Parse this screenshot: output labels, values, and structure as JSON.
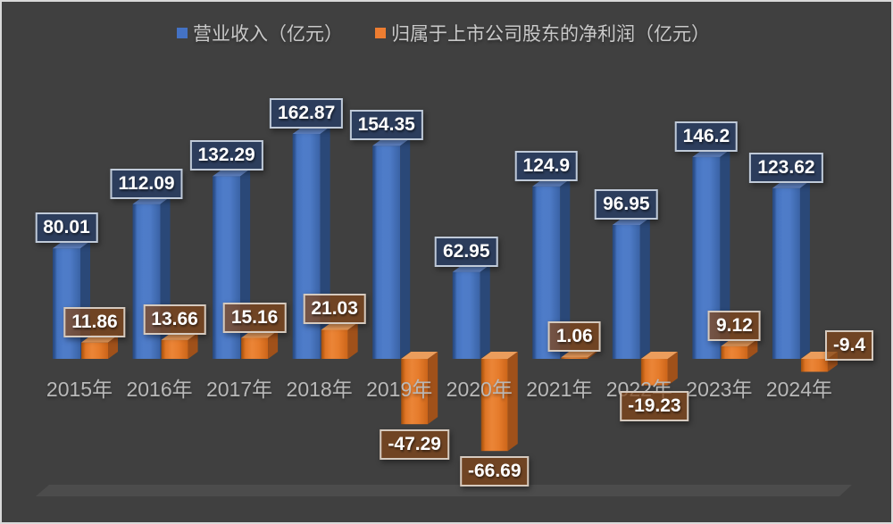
{
  "chart_data": {
    "type": "bar",
    "title": "",
    "categories": [
      "2015年",
      "2016年",
      "2017年",
      "2018年",
      "2019年",
      "2020年",
      "2021年",
      "2022年",
      "2023年",
      "2024年"
    ],
    "series": [
      {
        "name": "营业收入（亿元）",
        "color": "#4472C4",
        "values": [
          80.01,
          112.09,
          132.29,
          162.87,
          154.35,
          62.95,
          124.9,
          96.95,
          146.2,
          123.62
        ]
      },
      {
        "name": "归属于上市公司股东的净利润（亿元）",
        "color": "#ED7D31",
        "values": [
          11.86,
          13.66,
          15.16,
          21.03,
          -47.29,
          -66.69,
          1.06,
          -19.23,
          9.12,
          -9.4
        ]
      }
    ],
    "legend_position": "top",
    "value_labels": "boxed, outside end",
    "style": "3d-bars",
    "axes": {
      "x_axis_visible": false,
      "y_axis_visible": false,
      "gridlines": false,
      "baseline_value": 0
    },
    "background_color": "#404040",
    "floor_color": "#4C4C4C",
    "label_text_color": "#FFFFFF",
    "category_text_color": "#B9B9B9",
    "legend_text_color": "#C9C9C9"
  }
}
